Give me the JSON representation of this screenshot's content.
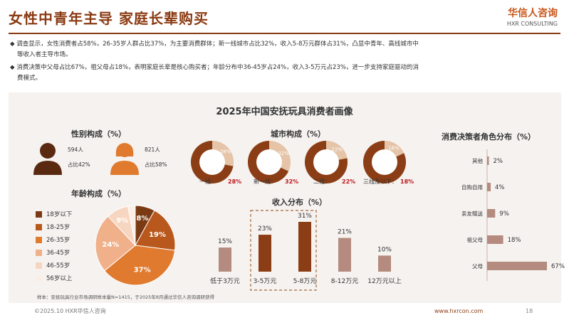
{
  "header": {
    "title": "女性中青年主导 家庭长辈购买",
    "logo_cn": "华信人咨询",
    "logo_en": "HXR CONSULTING"
  },
  "bullets": [
    {
      "marker": "◆",
      "lines": [
        "调查显示，女性消费者占58%，26-35岁人群占比37%，为主要消费群体；新一线城市占比32%，收入5-8万元群体占31%，凸显中青年、高线城市中",
        "等收入者主导市场。"
      ]
    },
    {
      "marker": "◆",
      "lines": [
        "消费决策中父母占比67%，祖父母占18%，表明家庭长辈是核心购买者；年龄分布中36-45岁占24%，收入3-5万元占23%，进一步支持家庭驱动的消",
        "费模式。"
      ]
    }
  ],
  "colors": {
    "dark_brown": "#7a3a14",
    "orange": "#d36a1e",
    "light_orange": "#e89a5c",
    "peach": "#f0c6a4",
    "pale": "#f6e0cf",
    "tan": "#b58a7a",
    "title_brown": "#8a3a12"
  },
  "main_title": "2025年中国安抚玩具消费者画像",
  "gender": {
    "title": "性别构成（%）",
    "male_count": "594人",
    "male_share": "占比42%",
    "female_count": "821人",
    "female_share": "占比58%"
  },
  "age_legend_title": "年龄构成（%）",
  "city_title": "城市构成（%）",
  "income_title": "收入分布（%）",
  "decision_title": "消费决策者角色分布（%）",
  "note": "样本：安抚玩具行业市场调研样本量N=1415，于2025年8月通过华信人咨询调研获得",
  "footer": {
    "left": "©2025.10 HXR华信人咨询",
    "url": "www.hxrcon.com",
    "page": "18"
  },
  "chart_data": [
    {
      "type": "pie",
      "title": "年龄构成（%）",
      "categories": [
        "18岁以下",
        "18-25岁",
        "26-35岁",
        "36-45岁",
        "46-55岁",
        "56岁以上"
      ],
      "values": [
        8,
        19,
        37,
        24,
        9,
        3
      ],
      "labels": [
        "8%",
        "19%",
        "37%",
        "24%",
        "9%",
        ""
      ],
      "colors": [
        "#7a3a14",
        "#b9581c",
        "#e07a2e",
        "#f0b08a",
        "#f6d6c0",
        "#fbeee4"
      ]
    },
    {
      "type": "pie",
      "title": "城市构成（%）",
      "categories": [
        "一线",
        "新一线",
        "二线",
        "三线及以下"
      ],
      "values": [
        28,
        32,
        22,
        18
      ],
      "labels": [
        "28%",
        "32%",
        "22%",
        "18%"
      ],
      "display_labels": [
        "一线：",
        "新一线：",
        "二线：",
        "三线及以下："
      ],
      "value_texts": [
        "28%",
        "32%",
        "22%",
        "18%"
      ]
    },
    {
      "type": "bar",
      "title": "收入分布（%）",
      "categories": [
        "低于3万元",
        "3-5万元",
        "5-8万元",
        "8-12万元",
        "12万元以上"
      ],
      "values": [
        15,
        23,
        31,
        21,
        10
      ],
      "labels": [
        "15%",
        "23%",
        "31%",
        "21%",
        "10%"
      ],
      "highlight": [
        false,
        true,
        true,
        false,
        false
      ]
    },
    {
      "type": "bar",
      "orientation": "horizontal",
      "title": "消费决策者角色分布（%）",
      "categories": [
        "其他",
        "自购自用",
        "亲友赠送",
        "祖父母",
        "父母"
      ],
      "values": [
        2,
        4,
        9,
        18,
        67
      ],
      "labels": [
        "2%",
        "4%",
        "9%",
        "18%",
        "67%"
      ]
    }
  ]
}
